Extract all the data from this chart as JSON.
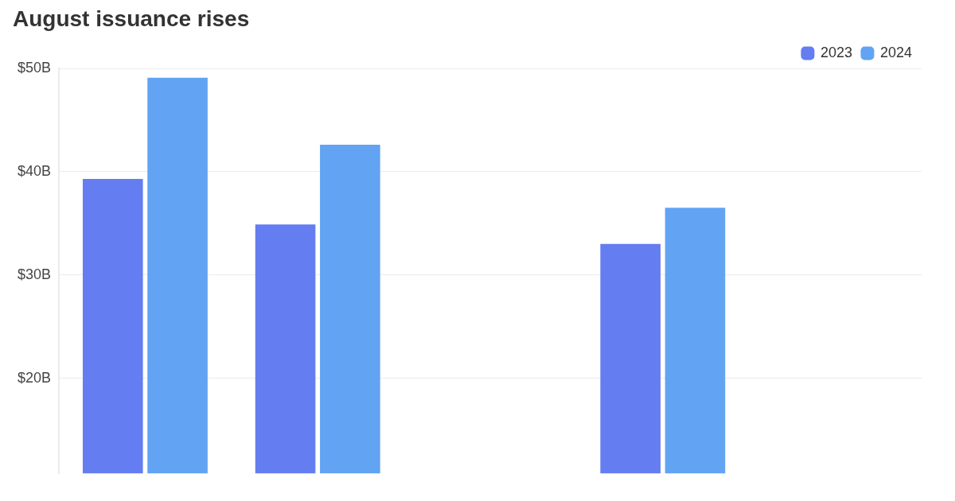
{
  "chart_data": {
    "type": "bar",
    "title": "August issuance rises",
    "categories": [
      null,
      null,
      null,
      null,
      null
    ],
    "series": [
      {
        "name": "2023",
        "color": "#647df0",
        "values": [
          39.3,
          34.9,
          null,
          33.0,
          null
        ]
      },
      {
        "name": "2024",
        "color": "#62a3f3",
        "values": [
          49.1,
          42.6,
          null,
          36.5,
          null
        ]
      }
    ],
    "ylim": [
      10.8,
      50
    ],
    "yticks": [
      {
        "value": 20,
        "label": "$20B"
      },
      {
        "value": 30,
        "label": "$30B"
      },
      {
        "value": 40,
        "label": "$40B"
      },
      {
        "value": 50,
        "label": "$50B"
      }
    ],
    "grid": "y",
    "legend": "top right",
    "tick_labels": "y"
  }
}
